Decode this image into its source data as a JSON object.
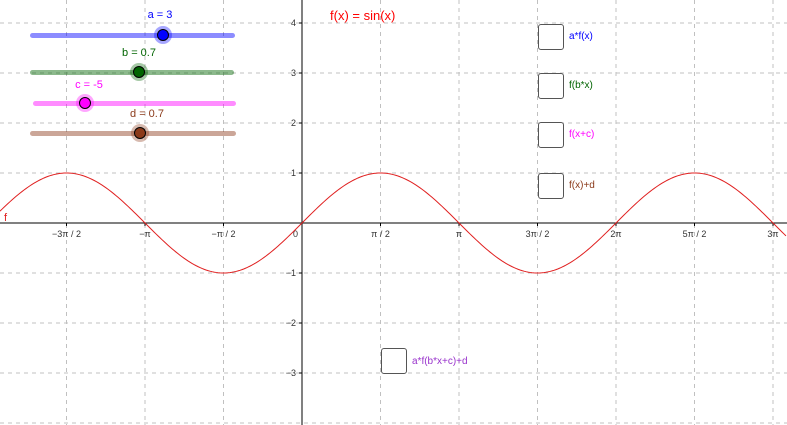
{
  "colors": {
    "curve": "#e02020",
    "slider_a": "#0000ff",
    "slider_b": "#006400",
    "slider_c": "#ff00ff",
    "slider_d": "#8b3a1a",
    "composite": "#9933cc",
    "grid": "#c0c0c0"
  },
  "function_label": "f(x) = sin(x)",
  "curve_label": "f",
  "sliders": [
    {
      "id": "a",
      "label": "a = 3",
      "value": 3,
      "min": -5,
      "max": 5
    },
    {
      "id": "b",
      "label": "b = 0.7",
      "value": 0.7,
      "min": -5,
      "max": 5
    },
    {
      "id": "c",
      "label": "c = -5",
      "value": -5,
      "min": -10,
      "max": 10
    },
    {
      "id": "d",
      "label": "d = 0.7",
      "value": 0.7,
      "min": -5,
      "max": 5
    }
  ],
  "checkboxes": [
    {
      "label": "a*f(x)",
      "color": "#0000ff",
      "checked": false
    },
    {
      "label": "f(b*x)",
      "color": "#006400",
      "checked": false
    },
    {
      "label": "f(x+c)",
      "color": "#ff00ff",
      "checked": false
    },
    {
      "label": "f(x)+d",
      "color": "#8b3a1a",
      "checked": false
    },
    {
      "label": "a*f(b*x+c)+d",
      "color": "#9933cc",
      "checked": false
    }
  ],
  "chart_data": {
    "type": "line",
    "title": "f(x) = sin(x)",
    "series": [
      {
        "name": "f",
        "function": "sin(x)"
      }
    ],
    "xlim": [
      -4.75,
      9.5
    ],
    "ylim": [
      -4,
      4.2
    ],
    "x_ticks": [
      "−3π / 2",
      "−π",
      "−π / 2",
      "0",
      "π / 2",
      "π",
      "3π / 2",
      "2π",
      "5π / 2",
      "3π"
    ],
    "y_ticks": [
      "4",
      "3",
      "2",
      "1",
      "−1",
      "−2",
      "−3"
    ],
    "grid": true
  }
}
